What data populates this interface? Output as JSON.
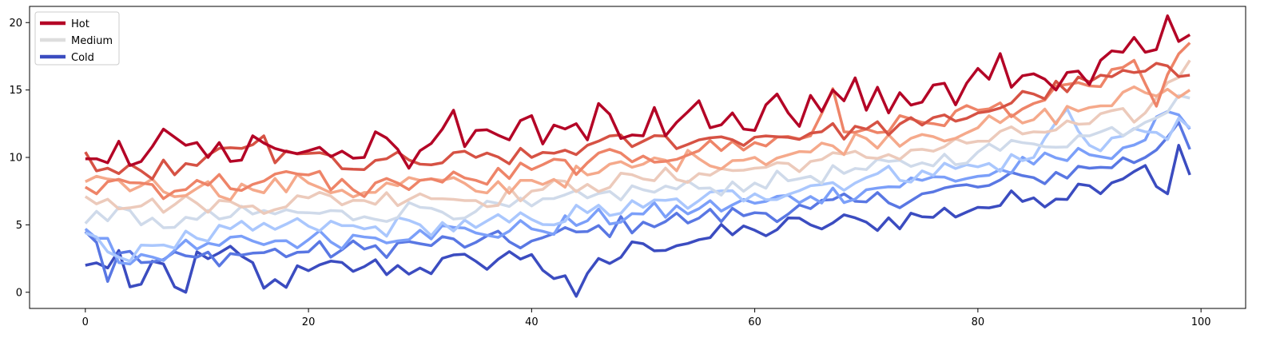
{
  "chart_data": {
    "type": "line",
    "title": "",
    "xlabel": "",
    "ylabel": "",
    "xlim": [
      -5,
      104
    ],
    "ylim": [
      -1.2,
      21.2
    ],
    "xticks": [
      0,
      20,
      40,
      60,
      80,
      100
    ],
    "yticks": [
      0,
      5,
      10,
      15,
      20
    ],
    "grid": false,
    "legend_placement": "top-left",
    "legend": [
      {
        "label": "Hot",
        "color": "#b40426"
      },
      {
        "label": "Medium",
        "color": "#dddddd"
      },
      {
        "label": "Cold",
        "color": "#3b4cc0"
      }
    ],
    "colormap": "coolwarm",
    "series_count": 10,
    "points_per_series": 100,
    "trend": {
      "start": [
        0,
        0
      ],
      "end": [
        99,
        10
      ]
    },
    "series": [
      {
        "offset": 10.0,
        "color": "#b40426",
        "noise": 0.6,
        "anchors": [
          [
            0,
            9.9
          ],
          [
            1,
            9.9
          ],
          [
            2,
            9.6
          ],
          [
            3,
            11.2
          ],
          [
            4,
            9.4
          ],
          [
            5,
            9.7
          ],
          [
            6,
            10.8
          ],
          [
            7,
            12.1
          ],
          [
            8,
            11.5
          ],
          [
            9,
            10.9
          ],
          [
            10,
            11.1
          ],
          [
            11,
            10.0
          ],
          [
            12,
            11.1
          ],
          [
            13,
            9.7
          ],
          [
            14,
            9.8
          ],
          [
            15,
            11.6
          ],
          [
            20,
            10.5
          ],
          [
            25,
            10.0
          ],
          [
            26,
            11.9
          ],
          [
            28,
            10.6
          ],
          [
            29,
            9.2
          ],
          [
            30,
            10.5
          ],
          [
            32,
            12.1
          ],
          [
            33,
            13.5
          ],
          [
            34,
            10.8
          ],
          [
            35,
            12.0
          ],
          [
            38,
            11.3
          ],
          [
            40,
            13.1
          ],
          [
            41,
            11.0
          ],
          [
            42,
            12.4
          ],
          [
            44,
            12.5
          ],
          [
            45,
            11.3
          ],
          [
            46,
            14.0
          ],
          [
            47,
            13.2
          ],
          [
            48,
            11.4
          ],
          [
            50,
            11.6
          ],
          [
            51,
            13.7
          ],
          [
            52,
            11.6
          ],
          [
            53,
            12.6
          ],
          [
            55,
            14.2
          ],
          [
            56,
            12.2
          ],
          [
            58,
            13.3
          ],
          [
            59,
            12.1
          ],
          [
            60,
            12.0
          ],
          [
            61,
            13.9
          ],
          [
            62,
            14.7
          ],
          [
            63,
            13.3
          ],
          [
            64,
            12.3
          ],
          [
            65,
            14.6
          ],
          [
            66,
            13.4
          ],
          [
            67,
            15.0
          ],
          [
            68,
            14.2
          ],
          [
            69,
            15.9
          ],
          [
            70,
            13.5
          ],
          [
            71,
            15.2
          ],
          [
            72,
            13.3
          ],
          [
            73,
            14.8
          ],
          [
            75,
            14.1
          ],
          [
            77,
            15.5
          ],
          [
            78,
            13.9
          ],
          [
            80,
            16.6
          ],
          [
            81,
            15.8
          ],
          [
            82,
            17.7
          ],
          [
            83,
            15.2
          ],
          [
            85,
            16.2
          ],
          [
            86,
            15.8
          ],
          [
            87,
            15.0
          ],
          [
            88,
            16.3
          ],
          [
            89,
            16.4
          ],
          [
            90,
            15.4
          ],
          [
            91,
            17.2
          ],
          [
            92,
            17.9
          ],
          [
            93,
            17.8
          ],
          [
            94,
            18.9
          ],
          [
            95,
            17.8
          ],
          [
            96,
            18.0
          ],
          [
            97,
            20.5
          ],
          [
            98,
            18.6
          ],
          [
            99,
            19.1
          ]
        ]
      },
      {
        "offset": 9.0,
        "color": "#d65244",
        "noise": 0.7,
        "anchors": [
          [
            0,
            10.4
          ],
          [
            1,
            9.0
          ],
          [
            2,
            9.2
          ],
          [
            3,
            8.8
          ],
          [
            5,
            9.0
          ],
          [
            10,
            9.4
          ],
          [
            16,
            11.6
          ],
          [
            17,
            9.6
          ],
          [
            20,
            10.3
          ],
          [
            25,
            9.1
          ],
          [
            27,
            9.9
          ],
          [
            30,
            9.5
          ],
          [
            35,
            10.0
          ],
          [
            40,
            10.0
          ],
          [
            45,
            10.9
          ],
          [
            50,
            11.2
          ],
          [
            55,
            11.3
          ],
          [
            60,
            11.5
          ],
          [
            65,
            11.8
          ],
          [
            70,
            12.1
          ],
          [
            75,
            12.4
          ],
          [
            80,
            13.3
          ],
          [
            85,
            14.7
          ],
          [
            90,
            15.6
          ],
          [
            95,
            16.4
          ],
          [
            99,
            16.1
          ]
        ]
      },
      {
        "offset": 8.0,
        "color": "#ee8468",
        "noise": 0.8,
        "anchors": [
          [
            0,
            7.8
          ],
          [
            1,
            7.3
          ],
          [
            2,
            8.2
          ],
          [
            5,
            8.1
          ],
          [
            8,
            7.5
          ],
          [
            10,
            8.3
          ],
          [
            15,
            8.0
          ],
          [
            20,
            8.7
          ],
          [
            24,
            7.6
          ],
          [
            28,
            8.1
          ],
          [
            30,
            8.3
          ],
          [
            35,
            8.3
          ],
          [
            40,
            9.1
          ],
          [
            45,
            9.6
          ],
          [
            50,
            10.1
          ],
          [
            55,
            10.5
          ],
          [
            60,
            11.1
          ],
          [
            65,
            11.6
          ],
          [
            67,
            15.1
          ],
          [
            68,
            11.9
          ],
          [
            70,
            12.1
          ],
          [
            75,
            12.6
          ],
          [
            80,
            13.5
          ],
          [
            85,
            14.0
          ],
          [
            90,
            15.3
          ],
          [
            94,
            17.2
          ],
          [
            96,
            13.8
          ],
          [
            99,
            18.5
          ]
        ]
      },
      {
        "offset": 7.0,
        "color": "#f5a98b",
        "noise": 0.8,
        "anchors": [
          [
            0,
            8.2
          ],
          [
            1,
            8.6
          ],
          [
            3,
            8.3
          ],
          [
            5,
            7.9
          ],
          [
            10,
            7.7
          ],
          [
            15,
            7.6
          ],
          [
            20,
            8.1
          ],
          [
            25,
            7.4
          ],
          [
            30,
            8.3
          ],
          [
            35,
            7.5
          ],
          [
            40,
            8.3
          ],
          [
            45,
            8.7
          ],
          [
            50,
            9.5
          ],
          [
            55,
            9.9
          ],
          [
            60,
            10.0
          ],
          [
            65,
            10.4
          ],
          [
            70,
            11.4
          ],
          [
            75,
            11.7
          ],
          [
            80,
            12.2
          ],
          [
            85,
            12.8
          ],
          [
            90,
            13.7
          ],
          [
            95,
            14.8
          ],
          [
            99,
            15.0
          ]
        ]
      },
      {
        "offset": 6.0,
        "color": "#eccabb",
        "noise": 0.7,
        "anchors": [
          [
            0,
            7.1
          ],
          [
            2,
            6.9
          ],
          [
            5,
            6.4
          ],
          [
            10,
            6.6
          ],
          [
            15,
            6.4
          ],
          [
            20,
            7.0
          ],
          [
            25,
            6.8
          ],
          [
            30,
            7.3
          ],
          [
            35,
            6.8
          ],
          [
            40,
            7.5
          ],
          [
            45,
            8.0
          ],
          [
            50,
            8.4
          ],
          [
            55,
            8.8
          ],
          [
            60,
            9.2
          ],
          [
            65,
            9.7
          ],
          [
            70,
            10.0
          ],
          [
            75,
            10.6
          ],
          [
            80,
            11.2
          ],
          [
            85,
            11.9
          ],
          [
            90,
            12.5
          ],
          [
            95,
            13.3
          ],
          [
            99,
            17.2
          ]
        ]
      },
      {
        "offset": 5.0,
        "color": "#cfdaea",
        "noise": 0.7,
        "anchors": [
          [
            0,
            5.1
          ],
          [
            1,
            6.0
          ],
          [
            2,
            5.3
          ],
          [
            3,
            6.3
          ],
          [
            5,
            5.0
          ],
          [
            10,
            5.4
          ],
          [
            15,
            5.8
          ],
          [
            20,
            5.9
          ],
          [
            25,
            5.6
          ],
          [
            30,
            6.3
          ],
          [
            35,
            6.0
          ],
          [
            40,
            6.4
          ],
          [
            45,
            7.0
          ],
          [
            50,
            7.6
          ],
          [
            55,
            7.7
          ],
          [
            60,
            8.1
          ],
          [
            65,
            8.6
          ],
          [
            70,
            9.1
          ],
          [
            75,
            9.6
          ],
          [
            80,
            10.4
          ],
          [
            85,
            11.0
          ],
          [
            90,
            11.6
          ],
          [
            95,
            12.6
          ],
          [
            98,
            14.6
          ],
          [
            99,
            14.4
          ]
        ]
      },
      {
        "offset": 4.0,
        "color": "#aac7fd",
        "noise": 0.8,
        "anchors": [
          [
            0,
            4.4
          ],
          [
            1,
            4.1
          ],
          [
            2,
            3.0
          ],
          [
            3,
            2.6
          ],
          [
            5,
            3.5
          ],
          [
            10,
            4.0
          ],
          [
            15,
            4.6
          ],
          [
            20,
            4.9
          ],
          [
            25,
            4.7
          ],
          [
            30,
            5.0
          ],
          [
            35,
            4.8
          ],
          [
            40,
            5.4
          ],
          [
            45,
            5.9
          ],
          [
            50,
            6.3
          ],
          [
            55,
            6.8
          ],
          [
            60,
            7.3
          ],
          [
            65,
            7.9
          ],
          [
            70,
            8.5
          ],
          [
            75,
            9.0
          ],
          [
            80,
            9.3
          ],
          [
            85,
            10.0
          ],
          [
            88,
            13.6
          ],
          [
            90,
            10.9
          ],
          [
            95,
            11.9
          ],
          [
            99,
            12.2
          ]
        ]
      },
      {
        "offset": 3.0,
        "color": "#7b9ff9",
        "noise": 0.8,
        "anchors": [
          [
            0,
            4.7
          ],
          [
            1,
            4.0
          ],
          [
            2,
            4.0
          ],
          [
            3,
            2.2
          ],
          [
            5,
            2.8
          ],
          [
            10,
            3.2
          ],
          [
            15,
            3.8
          ],
          [
            20,
            3.9
          ],
          [
            25,
            4.1
          ],
          [
            30,
            4.6
          ],
          [
            35,
            4.4
          ],
          [
            40,
            4.7
          ],
          [
            45,
            5.3
          ],
          [
            50,
            5.8
          ],
          [
            55,
            6.2
          ],
          [
            60,
            6.6
          ],
          [
            65,
            7.1
          ],
          [
            70,
            7.6
          ],
          [
            75,
            8.3
          ],
          [
            80,
            8.6
          ],
          [
            85,
            9.5
          ],
          [
            90,
            10.2
          ],
          [
            95,
            11.3
          ],
          [
            96,
            13.0
          ],
          [
            99,
            12.1
          ]
        ]
      },
      {
        "offset": 2.0,
        "color": "#5977e3",
        "noise": 0.8,
        "anchors": [
          [
            0,
            4.5
          ],
          [
            1,
            3.7
          ],
          [
            2,
            0.8
          ],
          [
            3,
            2.9
          ],
          [
            5,
            2.2
          ],
          [
            10,
            2.6
          ],
          [
            15,
            2.9
          ],
          [
            20,
            3.0
          ],
          [
            25,
            3.2
          ],
          [
            30,
            3.6
          ],
          [
            35,
            3.7
          ],
          [
            40,
            3.8
          ],
          [
            45,
            4.5
          ],
          [
            50,
            5.2
          ],
          [
            55,
            5.5
          ],
          [
            60,
            5.9
          ],
          [
            65,
            6.2
          ],
          [
            70,
            6.7
          ],
          [
            75,
            7.3
          ],
          [
            80,
            7.8
          ],
          [
            85,
            8.5
          ],
          [
            90,
            9.2
          ],
          [
            95,
            10.0
          ],
          [
            97,
            11.5
          ],
          [
            98,
            12.6
          ],
          [
            99,
            10.6
          ]
        ]
      },
      {
        "offset": 1.0,
        "color": "#3b4cc0",
        "noise": 0.9,
        "anchors": [
          [
            0,
            2.0
          ],
          [
            2,
            1.8
          ],
          [
            3,
            3.1
          ],
          [
            4,
            0.4
          ],
          [
            5,
            0.6
          ],
          [
            6,
            2.3
          ],
          [
            7,
            2.1
          ],
          [
            8,
            0.4
          ],
          [
            9,
            0.0
          ],
          [
            10,
            3.0
          ],
          [
            15,
            2.2
          ],
          [
            16,
            0.3
          ],
          [
            20,
            1.6
          ],
          [
            25,
            1.9
          ],
          [
            30,
            1.8
          ],
          [
            35,
            2.3
          ],
          [
            40,
            2.8
          ],
          [
            44,
            -0.3
          ],
          [
            45,
            1.4
          ],
          [
            50,
            3.6
          ],
          [
            55,
            3.9
          ],
          [
            60,
            4.6
          ],
          [
            65,
            5.0
          ],
          [
            70,
            5.2
          ],
          [
            75,
            5.6
          ],
          [
            80,
            6.3
          ],
          [
            85,
            7.0
          ],
          [
            90,
            7.9
          ],
          [
            95,
            9.4
          ],
          [
            97,
            7.3
          ],
          [
            98,
            10.9
          ],
          [
            99,
            8.7
          ]
        ]
      }
    ]
  }
}
